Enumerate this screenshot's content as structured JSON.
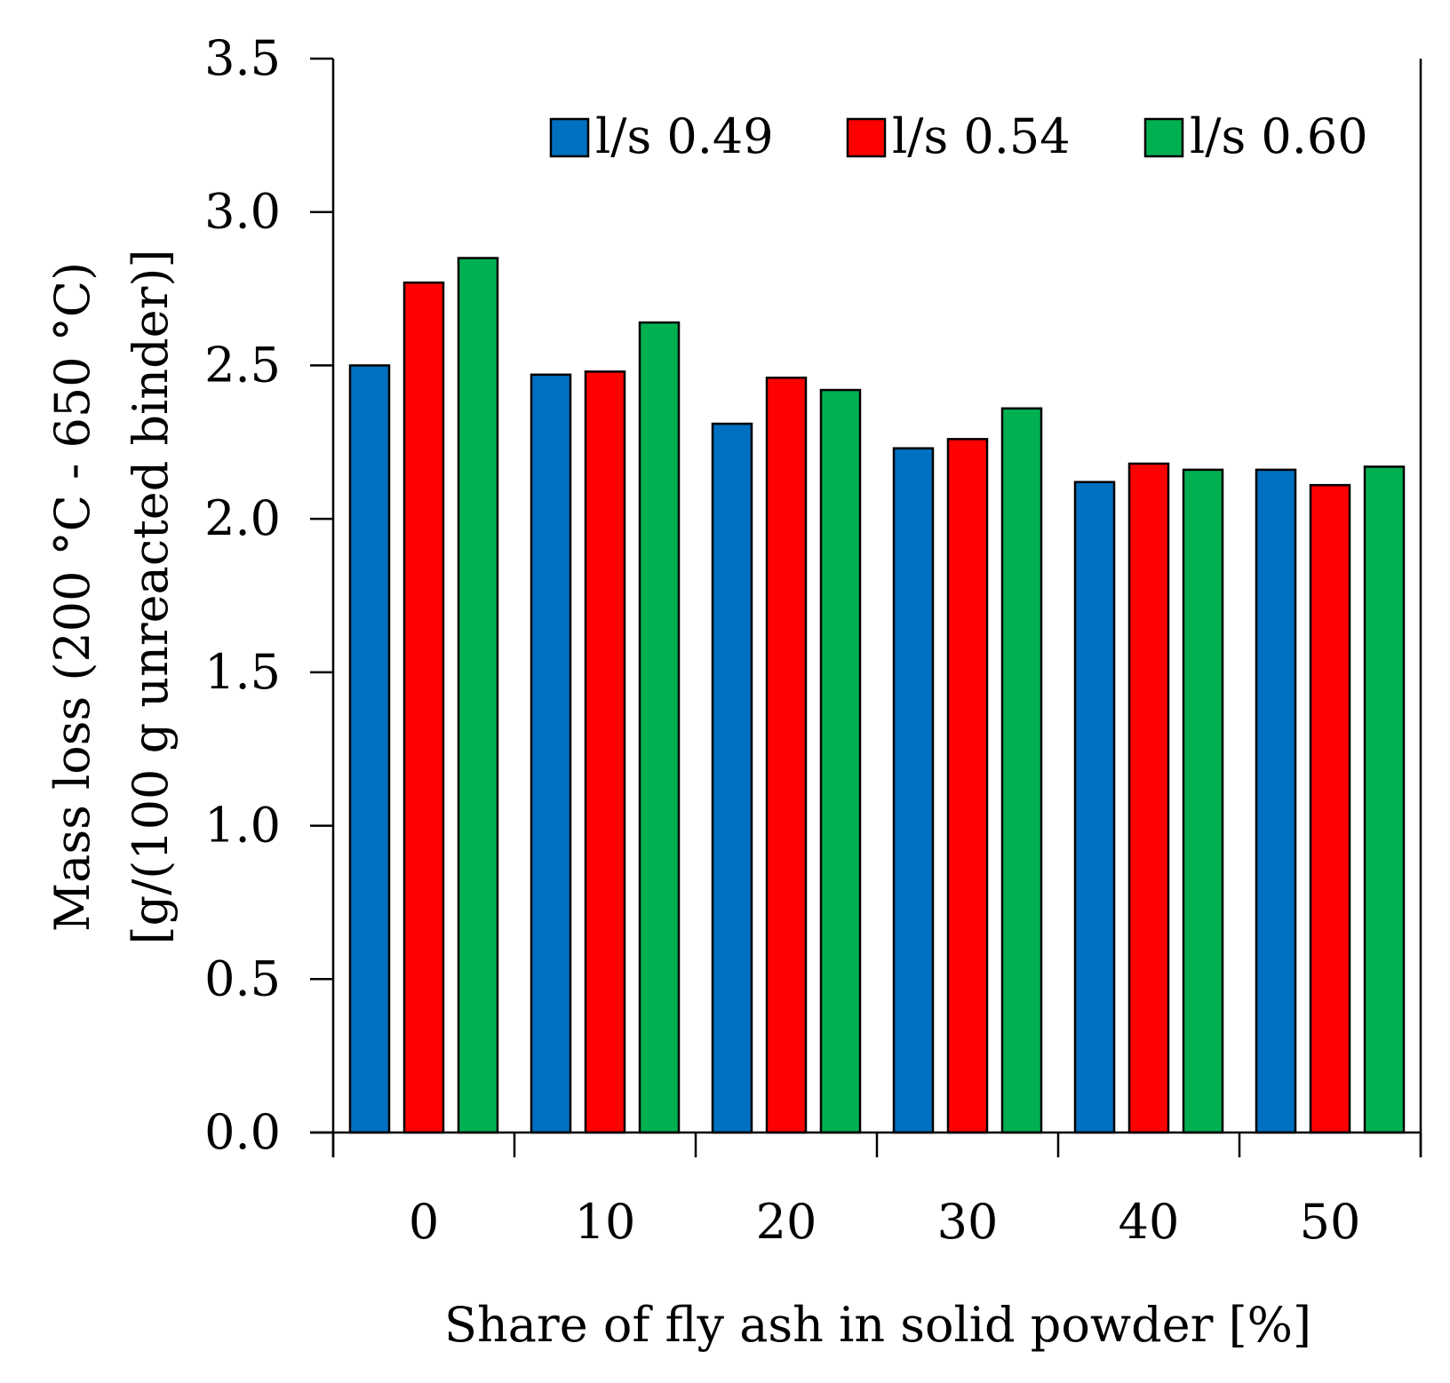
{
  "chart_data": {
    "type": "bar",
    "title": "",
    "xlabel": "Share of fly ash in solid powder [%]",
    "ylabel_lines": [
      "Mass loss (200 °C - 650 °C)",
      "[g/(100 g unreacted binder)]"
    ],
    "categories": [
      "0",
      "10",
      "20",
      "30",
      "40",
      "50"
    ],
    "ylim": [
      0,
      3.5
    ],
    "yticks": [
      0.0,
      0.5,
      1.0,
      1.5,
      2.0,
      2.5,
      3.0,
      3.5
    ],
    "ytick_labels": [
      "0.0",
      "0.5",
      "1.0",
      "1.5",
      "2.0",
      "2.5",
      "3.0",
      "3.5"
    ],
    "grid": false,
    "legend_position": "top-right",
    "series": [
      {
        "name": "l/s 0.49",
        "color": "#0070C0",
        "values": [
          2.5,
          2.47,
          2.31,
          2.23,
          2.12,
          2.16
        ]
      },
      {
        "name": "l/s 0.54",
        "color": "#FF0000",
        "values": [
          2.77,
          2.48,
          2.46,
          2.26,
          2.18,
          2.11
        ]
      },
      {
        "name": "l/s 0.60",
        "color": "#00B050",
        "values": [
          2.85,
          2.64,
          2.42,
          2.36,
          2.16,
          2.17
        ]
      }
    ]
  }
}
